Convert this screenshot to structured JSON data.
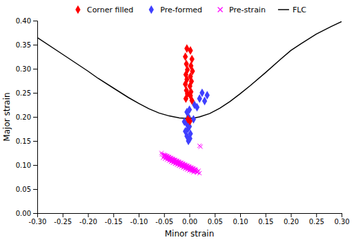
{
  "chart_data": {
    "type": "scatter",
    "xlabel": "Minor strain",
    "ylabel": "Major strain",
    "xlim": [
      -0.3,
      0.3
    ],
    "ylim": [
      0.0,
      0.4
    ],
    "xticks": [
      {
        "value": -0.3,
        "label": "-0.30"
      },
      -0.25,
      {
        "value": -0.2,
        "label": "-0.20"
      },
      -0.15,
      {
        "value": -0.1,
        "label": "-0.10"
      },
      -0.05,
      {
        "value": 0.0,
        "label": "0.00"
      },
      0.05,
      {
        "value": 0.1,
        "label": "0.10"
      },
      0.15,
      {
        "value": 0.2,
        "label": "0.20"
      },
      0.25,
      {
        "value": 0.3,
        "label": "0.30"
      }
    ],
    "yticks": [
      {
        "value": 0.0,
        "label": "0.00"
      },
      0.05,
      {
        "value": 0.1,
        "label": "0.10"
      },
      0.15,
      {
        "value": 0.2,
        "label": "0.20"
      },
      0.25,
      {
        "value": 0.3,
        "label": "0.30"
      },
      0.35,
      {
        "value": 0.4,
        "label": "0.40"
      }
    ],
    "grid": false,
    "legend": "top",
    "series": [
      {
        "name": "Corner filled",
        "type": "scatter",
        "marker": "diamond",
        "color": "#FF0000",
        "x": [
          -0.005,
          0.002,
          -0.008,
          0.005,
          -0.006,
          0.003,
          -0.004,
          0.006,
          -0.007,
          0.002,
          -0.005,
          0.004,
          -0.008,
          0.001,
          -0.006,
          0.003,
          -0.004,
          0.002,
          -0.007,
          0.005,
          -0.003,
          0.001
        ],
        "values": [
          0.342,
          0.338,
          0.325,
          0.32,
          0.31,
          0.306,
          0.298,
          0.295,
          0.288,
          0.284,
          0.278,
          0.274,
          0.268,
          0.264,
          0.255,
          0.252,
          0.248,
          0.244,
          0.238,
          0.234,
          0.195,
          0.191
        ]
      },
      {
        "name": "Pre-formed",
        "type": "scatter",
        "marker": "diamond",
        "color": "#4040FF",
        "x": [
          0.025,
          0.035,
          0.02,
          0.03,
          0.01,
          0.015,
          0.0,
          -0.005,
          -0.002,
          0.008,
          -0.01,
          -0.005,
          0.0,
          -0.003,
          -0.008,
          0.002,
          -0.005,
          0.001,
          -0.002
        ],
        "values": [
          0.25,
          0.245,
          0.238,
          0.233,
          0.225,
          0.22,
          0.215,
          0.21,
          0.2,
          0.195,
          0.19,
          0.185,
          0.18,
          0.175,
          0.17,
          0.165,
          0.16,
          0.155,
          0.15
        ]
      },
      {
        "name": "Pre-strain",
        "type": "scatter",
        "marker": "x",
        "color": "#FF00FF",
        "x": [
          -0.055,
          -0.05,
          -0.047,
          -0.044,
          -0.041,
          -0.038,
          -0.035,
          -0.032,
          -0.03,
          -0.027,
          -0.025,
          -0.023,
          -0.02,
          -0.018,
          -0.016,
          -0.014,
          -0.012,
          -0.01,
          -0.008,
          -0.006,
          -0.004,
          -0.002,
          0.0,
          0.002,
          0.004,
          0.006,
          0.008,
          0.01,
          0.012,
          0.015,
          -0.05,
          -0.046,
          -0.042,
          -0.038,
          -0.034,
          -0.03,
          -0.026,
          -0.022,
          -0.018,
          -0.014,
          -0.01,
          -0.006,
          -0.002,
          0.002,
          0.006,
          0.01,
          0.014,
          -0.048,
          -0.044,
          -0.04,
          -0.036,
          -0.032,
          -0.028,
          -0.024,
          -0.02,
          -0.016,
          -0.012,
          -0.008,
          -0.004,
          0.0,
          0.004,
          0.008,
          0.012,
          0.018,
          -0.052,
          -0.048,
          -0.044,
          -0.04,
          -0.036,
          -0.032,
          -0.028,
          -0.024,
          -0.02,
          -0.016,
          -0.012,
          -0.008,
          -0.004,
          0.0,
          0.004,
          0.008,
          -0.046,
          -0.042,
          -0.038,
          -0.034,
          -0.03,
          -0.026,
          -0.022,
          -0.018,
          -0.014,
          -0.01,
          -0.006,
          -0.002,
          0.002,
          0.006,
          0.01,
          -0.054,
          -0.05,
          -0.046,
          -0.042,
          -0.038,
          -0.034,
          -0.03,
          -0.026,
          -0.022,
          -0.018,
          -0.014,
          -0.01,
          -0.006,
          -0.002,
          0.002,
          0.006,
          0.02,
          0.022,
          -0.045,
          -0.041,
          -0.037,
          -0.033,
          -0.029,
          -0.025,
          -0.021,
          -0.017,
          -0.013,
          -0.009,
          -0.005,
          -0.001,
          0.003,
          0.007,
          0.011,
          -0.043,
          -0.039,
          -0.035,
          -0.031,
          -0.027,
          -0.023,
          -0.019,
          -0.015,
          -0.011,
          -0.007,
          -0.003,
          0.001,
          0.005,
          0.009,
          0.013,
          -0.04,
          -0.036,
          -0.032,
          -0.028,
          -0.024,
          -0.02,
          -0.016,
          -0.012,
          -0.008,
          -0.004,
          0.0,
          0.004,
          0.008,
          0.012,
          0.016,
          0.02,
          -0.038,
          -0.034,
          -0.03,
          -0.026,
          -0.022,
          -0.018,
          -0.014,
          -0.01,
          -0.006,
          -0.002,
          0.002,
          -0.036,
          -0.032,
          -0.028,
          -0.024,
          -0.02,
          -0.016,
          -0.012,
          -0.008,
          -0.004,
          0.0
        ],
        "values": [
          0.125,
          0.122,
          0.12,
          0.118,
          0.116,
          0.114,
          0.112,
          0.11,
          0.109,
          0.107,
          0.106,
          0.104,
          0.103,
          0.102,
          0.101,
          0.1,
          0.099,
          0.098,
          0.097,
          0.096,
          0.095,
          0.094,
          0.093,
          0.092,
          0.091,
          0.09,
          0.089,
          0.088,
          0.087,
          0.085,
          0.118,
          0.116,
          0.114,
          0.112,
          0.11,
          0.108,
          0.106,
          0.104,
          0.102,
          0.1,
          0.098,
          0.096,
          0.094,
          0.092,
          0.09,
          0.088,
          0.086,
          0.12,
          0.118,
          0.116,
          0.114,
          0.112,
          0.11,
          0.108,
          0.106,
          0.104,
          0.102,
          0.1,
          0.098,
          0.096,
          0.094,
          0.092,
          0.09,
          0.088,
          0.115,
          0.113,
          0.111,
          0.109,
          0.107,
          0.105,
          0.103,
          0.101,
          0.099,
          0.097,
          0.095,
          0.093,
          0.091,
          0.089,
          0.087,
          0.085,
          0.117,
          0.115,
          0.113,
          0.111,
          0.109,
          0.107,
          0.105,
          0.103,
          0.101,
          0.099,
          0.097,
          0.095,
          0.093,
          0.091,
          0.089,
          0.122,
          0.12,
          0.118,
          0.116,
          0.114,
          0.112,
          0.11,
          0.108,
          0.106,
          0.104,
          0.102,
          0.1,
          0.098,
          0.096,
          0.094,
          0.092,
          0.14,
          0.138,
          0.119,
          0.117,
          0.115,
          0.113,
          0.111,
          0.109,
          0.107,
          0.105,
          0.103,
          0.101,
          0.099,
          0.097,
          0.095,
          0.093,
          0.091,
          0.116,
          0.114,
          0.112,
          0.11,
          0.108,
          0.106,
          0.104,
          0.102,
          0.1,
          0.098,
          0.096,
          0.094,
          0.092,
          0.09,
          0.088,
          0.113,
          0.111,
          0.109,
          0.107,
          0.105,
          0.103,
          0.101,
          0.099,
          0.097,
          0.095,
          0.093,
          0.091,
          0.089,
          0.087,
          0.085,
          0.083,
          0.11,
          0.108,
          0.106,
          0.104,
          0.102,
          0.1,
          0.098,
          0.096,
          0.094,
          0.092,
          0.09,
          0.107,
          0.105,
          0.103,
          0.101,
          0.099,
          0.097,
          0.095,
          0.093,
          0.091,
          0.089
        ]
      },
      {
        "name": "FLC",
        "type": "line",
        "line_style": "solid",
        "color": "#000000",
        "x": [
          -0.3,
          -0.25,
          -0.2,
          -0.18,
          -0.15,
          -0.12,
          -0.1,
          -0.08,
          -0.06,
          -0.04,
          -0.02,
          -0.01,
          0.0,
          0.01,
          0.02,
          0.04,
          0.06,
          0.08,
          0.1,
          0.12,
          0.15,
          0.18,
          0.2,
          0.22,
          0.25,
          0.28,
          0.3
        ],
        "values": [
          0.365,
          0.33,
          0.295,
          0.28,
          0.26,
          0.24,
          0.228,
          0.217,
          0.208,
          0.202,
          0.198,
          0.197,
          0.197,
          0.198,
          0.2,
          0.207,
          0.218,
          0.232,
          0.248,
          0.265,
          0.292,
          0.32,
          0.338,
          0.352,
          0.372,
          0.388,
          0.398
        ]
      }
    ]
  }
}
